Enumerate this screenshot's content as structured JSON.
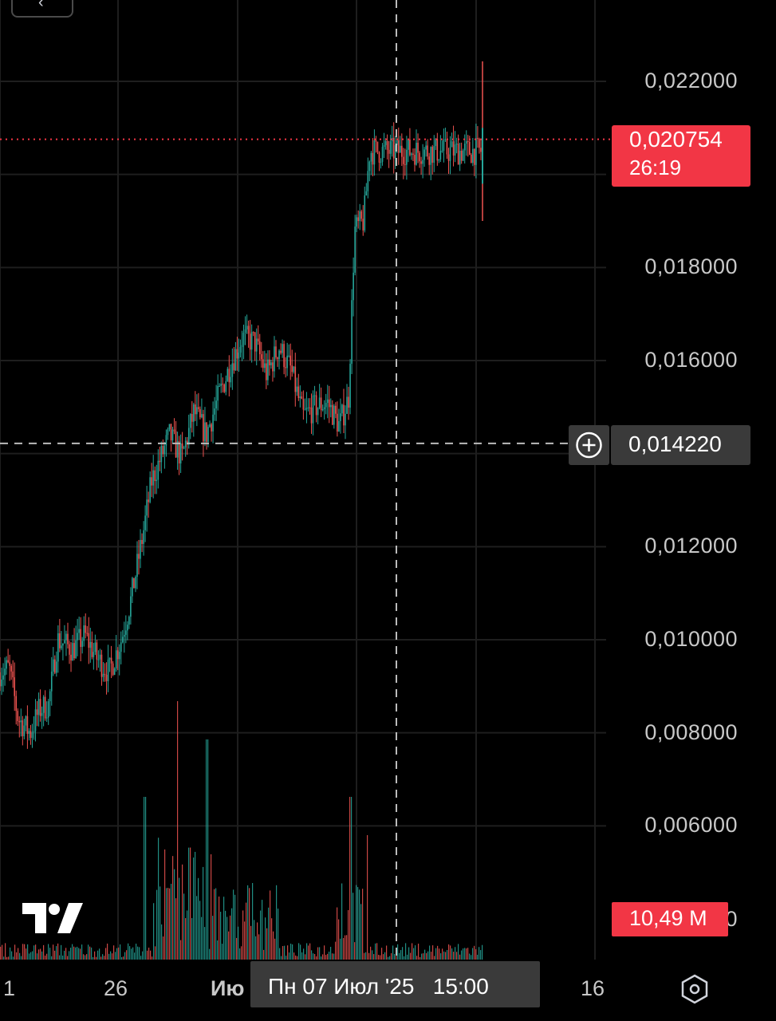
{
  "chart_data": {
    "type": "candlestick",
    "price_axis": {
      "ticks": [
        "0,022000",
        "0,018000",
        "0,016000",
        "0,012000",
        "0,010000",
        "0,008000",
        "0,006000"
      ],
      "tick_values": [
        0.022,
        0.018,
        0.016,
        0.012,
        0.01,
        0.008,
        0.006
      ],
      "partial_tick": "0"
    },
    "time_axis": {
      "ticks": [
        "1",
        "26",
        "Ию",
        "16"
      ]
    },
    "current_price": {
      "value": "0,020754",
      "countdown": "26:19",
      "numeric": 0.020754
    },
    "crosshair": {
      "price": "0,014220",
      "numeric": 0.01422,
      "time": "Пн 07 Июл '25   15:00"
    },
    "volume": {
      "last": "10,49 M"
    },
    "price_path": [
      [
        0.0,
        0.0093
      ],
      [
        0.015,
        0.0094
      ],
      [
        0.03,
        0.0083
      ],
      [
        0.05,
        0.008
      ],
      [
        0.065,
        0.0085
      ],
      [
        0.08,
        0.0086
      ],
      [
        0.095,
        0.01
      ],
      [
        0.12,
        0.0098
      ],
      [
        0.14,
        0.0101
      ],
      [
        0.16,
        0.0096
      ],
      [
        0.18,
        0.0093
      ],
      [
        0.2,
        0.01
      ],
      [
        0.215,
        0.0108
      ],
      [
        0.235,
        0.0122
      ],
      [
        0.25,
        0.0134
      ],
      [
        0.265,
        0.0139
      ],
      [
        0.28,
        0.0144
      ],
      [
        0.3,
        0.0139
      ],
      [
        0.32,
        0.0149
      ],
      [
        0.34,
        0.0144
      ],
      [
        0.36,
        0.0152
      ],
      [
        0.38,
        0.0159
      ],
      [
        0.4,
        0.0165
      ],
      [
        0.42,
        0.0164
      ],
      [
        0.44,
        0.0157
      ],
      [
        0.46,
        0.0163
      ],
      [
        0.48,
        0.0158
      ],
      [
        0.5,
        0.0148
      ],
      [
        0.52,
        0.015
      ],
      [
        0.54,
        0.0151
      ],
      [
        0.56,
        0.0146
      ],
      [
        0.575,
        0.0152
      ],
      [
        0.585,
        0.0188
      ],
      [
        0.6,
        0.019
      ],
      [
        0.61,
        0.0205
      ]
    ],
    "volume_peaks": [
      [
        0.238,
        0.34
      ],
      [
        0.292,
        0.54
      ],
      [
        0.341,
        0.46
      ],
      [
        0.348,
        0.22
      ],
      [
        0.578,
        0.34
      ],
      [
        0.605,
        0.26
      ]
    ],
    "colors": {
      "up": "#26a69a",
      "down": "#ef5350",
      "badge_red": "#f23645",
      "badge_gray": "#3a3a3a",
      "grid": "#1e1e1e"
    }
  },
  "icons": {
    "settings": "hexagon-settings-icon",
    "add": "plus-circle-icon",
    "logo": "tradingview-logo-icon",
    "back": "chevron-left-icon"
  }
}
